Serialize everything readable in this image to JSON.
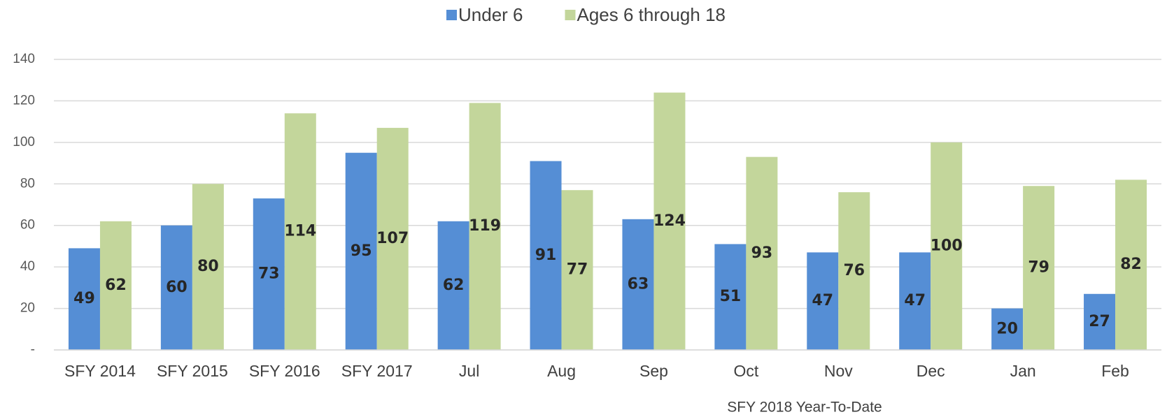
{
  "chart_data": {
    "type": "bar",
    "subtitle": "SFY 2018 Year-To-Date",
    "categories": [
      "SFY 2014",
      "SFY 2015",
      "SFY 2016",
      "SFY 2017",
      "Jul",
      "Aug",
      "Sep",
      "Oct",
      "Nov",
      "Dec",
      "Jan",
      "Feb"
    ],
    "series": [
      {
        "name": "Under 6",
        "color": "#558ed5",
        "values": [
          49,
          60,
          73,
          95,
          62,
          91,
          63,
          51,
          47,
          47,
          20,
          27
        ]
      },
      {
        "name": "Ages 6 through 18",
        "color": "#c3d69b",
        "values": [
          62,
          80,
          114,
          107,
          119,
          77,
          124,
          93,
          76,
          100,
          79,
          82
        ]
      }
    ],
    "ylim": [
      0,
      140
    ],
    "yticks": [
      {
        "value": 0,
        "label": "-"
      },
      20,
      40,
      60,
      80,
      100,
      120,
      140
    ],
    "grid": true,
    "legend": "top"
  }
}
